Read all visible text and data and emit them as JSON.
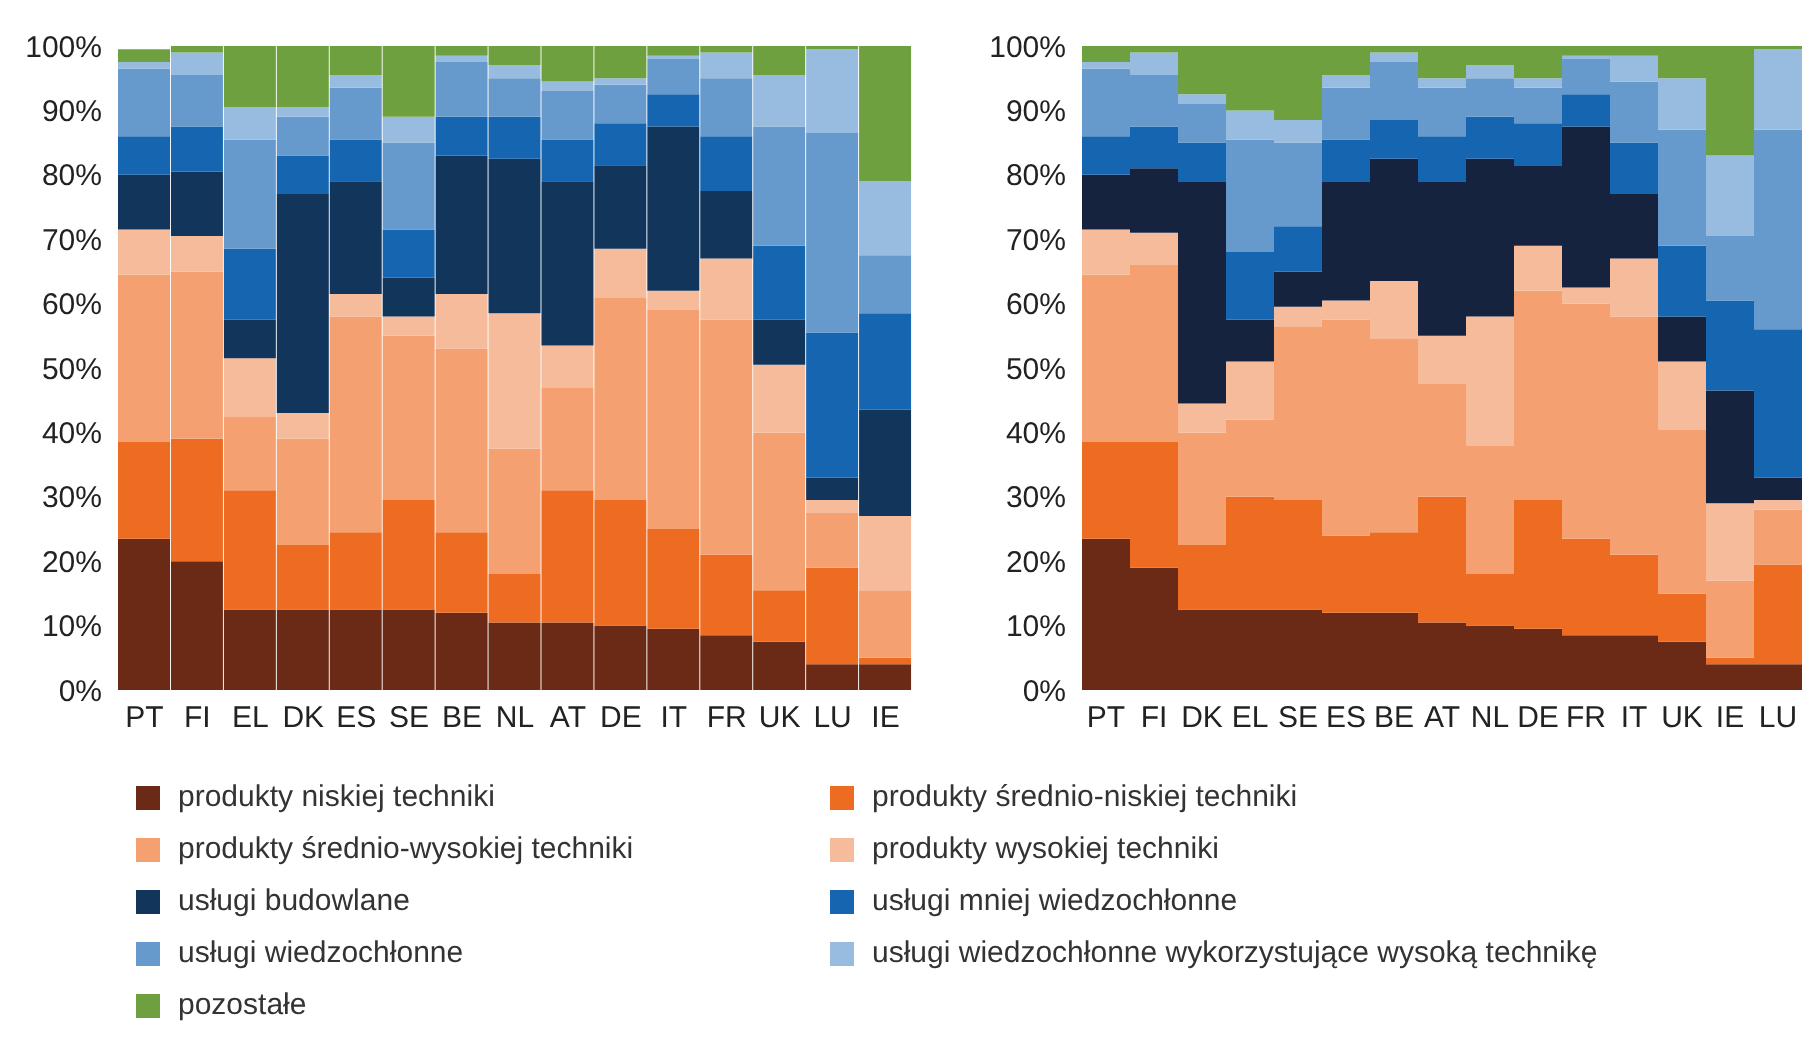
{
  "chart_data": [
    {
      "type": "bar",
      "stacked": true,
      "legend": "bottom",
      "categories": [
        "PT",
        "FI",
        "EL",
        "DK",
        "ES",
        "SE",
        "BE",
        "NL",
        "AT",
        "DE",
        "IT",
        "FR",
        "UK",
        "LU",
        "IE"
      ],
      "ylim": [
        0,
        100
      ],
      "yticks": [
        {
          "value": 0,
          "label": "0%"
        },
        {
          "value": 10,
          "label": "10%"
        },
        {
          "value": 20,
          "label": "20%"
        },
        {
          "value": 30,
          "label": "30%"
        },
        {
          "value": 40,
          "label": "40%"
        },
        {
          "value": 50,
          "label": "50%"
        },
        {
          "value": 60,
          "label": "60%"
        },
        {
          "value": 70,
          "label": "70%"
        },
        {
          "value": 80,
          "label": "80%"
        },
        {
          "value": 90,
          "label": "90%"
        },
        {
          "value": 100,
          "label": "100%"
        }
      ],
      "series": [
        {
          "name": "produkty niskiej techniki",
          "color": "#6b2a15",
          "values": [
            23.5,
            20,
            12.5,
            12.5,
            12.5,
            12.5,
            12,
            10.5,
            10.5,
            10,
            9.5,
            8.5,
            7.5,
            4,
            4
          ]
        },
        {
          "name": "produkty średnio-niskiej techniki",
          "color": "#ee6b22",
          "values": [
            15,
            19,
            18.5,
            10,
            12,
            17,
            12.5,
            7.5,
            20.5,
            19.5,
            15.5,
            12.5,
            8,
            15,
            1
          ]
        },
        {
          "name": "produkty średnio-wysokiej techniki",
          "color": "#f4a070",
          "values": [
            26,
            26,
            11.5,
            16.5,
            33.5,
            25.5,
            28.5,
            19.5,
            16,
            31.5,
            34,
            36.5,
            24.5,
            8.5,
            10.5
          ]
        },
        {
          "name": "produkty wysokiej techniki",
          "color": "#f6bb9a",
          "values": [
            7,
            5.5,
            9,
            4,
            3.5,
            3,
            8.5,
            21,
            6.5,
            7.5,
            3,
            9.5,
            10.5,
            2,
            11.5
          ]
        },
        {
          "name": "usługi budowlane",
          "color": "#12355b",
          "values": [
            8.5,
            10,
            6,
            34,
            17.5,
            6,
            21.5,
            24,
            25.5,
            13,
            25.5,
            10.5,
            7,
            3.5,
            16.5
          ]
        },
        {
          "name": "usługi mniej wiedzochłonne",
          "color": "#1565b0",
          "values": [
            6,
            7,
            11,
            6,
            6.5,
            7.5,
            6,
            6.5,
            6.5,
            6.5,
            5,
            8.5,
            11.5,
            22.5,
            15
          ]
        },
        {
          "name": "usługi wiedzochłonne",
          "color": "#6699cc",
          "values": [
            10.5,
            8,
            17,
            6,
            8,
            13.5,
            8.5,
            6,
            7.5,
            6,
            5.5,
            9,
            18.5,
            31,
            9
          ]
        },
        {
          "name": "usługi wiedzochłonne wykorzystujące wysoką technikę",
          "color": "#98bbe0",
          "values": [
            1,
            3.5,
            5,
            1.5,
            2,
            4,
            1,
            2,
            1.5,
            1,
            0.5,
            4,
            8,
            13,
            11.5
          ]
        },
        {
          "name": "pozostałe",
          "color": "#6fa040",
          "values": [
            2,
            1,
            9.5,
            9.5,
            4.5,
            11,
            1.5,
            3,
            5.5,
            5,
            1.5,
            1,
            4.5,
            0.5,
            21
          ]
        }
      ]
    },
    {
      "type": "bar",
      "stacked": true,
      "categories": [
        "PT",
        "FI",
        "DK",
        "EL",
        "SE",
        "ES",
        "BE",
        "AT",
        "NL",
        "DE",
        "FR",
        "IT",
        "UK",
        "IE",
        "LU"
      ],
      "ylim": [
        0,
        100
      ],
      "yticks": [
        {
          "value": 0,
          "label": "0%"
        },
        {
          "value": 10,
          "label": "10%"
        },
        {
          "value": 20,
          "label": "20%"
        },
        {
          "value": 30,
          "label": "30%"
        },
        {
          "value": 40,
          "label": "40%"
        },
        {
          "value": 50,
          "label": "50%"
        },
        {
          "value": 60,
          "label": "60%"
        },
        {
          "value": 70,
          "label": "70%"
        },
        {
          "value": 80,
          "label": "80%"
        },
        {
          "value": 90,
          "label": "90%"
        },
        {
          "value": 100,
          "label": "100%"
        }
      ],
      "series": [
        {
          "color": "#6b2a15",
          "values": [
            23.5,
            19,
            12.5,
            12.5,
            12.5,
            12,
            12,
            10.5,
            10,
            9.5,
            8.5,
            8.5,
            7.5,
            4,
            4
          ]
        },
        {
          "color": "#ee6b22",
          "values": [
            15,
            19.5,
            10,
            17.5,
            17,
            12,
            12.5,
            19.5,
            8,
            20,
            15,
            12.5,
            7.5,
            1,
            15.5
          ]
        },
        {
          "color": "#f4a070",
          "values": [
            26,
            27.5,
            17.5,
            12,
            27,
            33.5,
            30,
            17.5,
            20,
            32.5,
            36.5,
            37,
            25.5,
            12,
            8.5
          ]
        },
        {
          "color": "#f6bb9a",
          "values": [
            7,
            5,
            4.5,
            9,
            3,
            3,
            9,
            7.5,
            20,
            7,
            2.5,
            9,
            10.5,
            12,
            1.5
          ]
        },
        {
          "color": "#15233f",
          "values": [
            8.5,
            10,
            34.5,
            6.5,
            5.5,
            18.5,
            19,
            24,
            24.5,
            12.5,
            25,
            10,
            7,
            17.5,
            3.5
          ]
        },
        {
          "color": "#1565b0",
          "values": [
            6,
            6.5,
            6,
            10.5,
            7,
            6.5,
            6,
            7,
            6.5,
            6.5,
            5,
            8,
            11,
            14,
            23
          ]
        },
        {
          "color": "#6699cc",
          "values": [
            10.5,
            8,
            6,
            17.5,
            13,
            8,
            9,
            7.5,
            6,
            5.5,
            5.5,
            9.5,
            18,
            10,
            31
          ]
        },
        {
          "color": "#98bbe0",
          "values": [
            1,
            3.5,
            1.5,
            4.5,
            3.5,
            2,
            1.5,
            1.5,
            2,
            1.5,
            0.5,
            4,
            8,
            12.5,
            12.5
          ]
        },
        {
          "color": "#6fa040",
          "values": [
            2.5,
            1,
            7.5,
            10,
            11.5,
            4.5,
            1,
            5,
            3,
            5,
            1.5,
            1.5,
            5,
            17,
            0.5
          ]
        }
      ]
    }
  ]
}
